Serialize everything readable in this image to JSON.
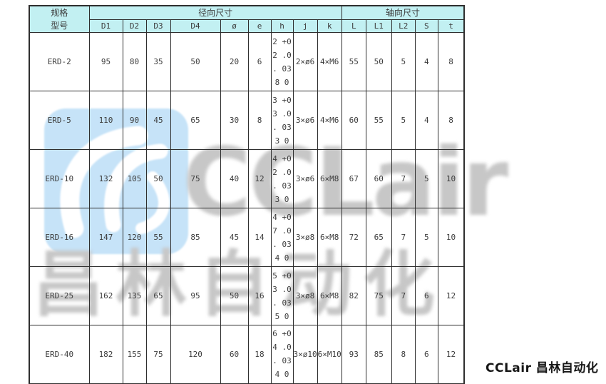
{
  "colors": {
    "header_bg": "#c2f0f2",
    "grid_line": "#2e2e2e",
    "logo_blue": "#c6e3f8",
    "watermark_gray": "#c7c7c7",
    "cell_text": "#3c3c3c"
  },
  "watermark": {
    "brand_en": "CCLair",
    "brand_cn": "昌林自动化",
    "logo_icon": "swirl-leaf-icon"
  },
  "caption": {
    "text": "CCLair 昌林自动化"
  },
  "table": {
    "corner_header": "规格\n型号",
    "group_headers": [
      "径向尺寸",
      "轴向尺寸"
    ],
    "column_headers": [
      "D1",
      "D2",
      "D3",
      "D4",
      "ø",
      "e",
      "h",
      "j",
      "k",
      "L",
      "L1",
      "L2",
      "S",
      "t"
    ],
    "rows": [
      {
        "model": "ERD-2",
        "cells": [
          "95",
          "80",
          "35",
          "50",
          "20",
          "6",
          "2 +0\n2 .0\n. 03\n8 0",
          "2×ø6",
          "4×M6",
          "55",
          "50",
          "5",
          "4",
          "8"
        ]
      },
      {
        "model": "ERD-5",
        "cells": [
          "110",
          "90",
          "45",
          "65",
          "30",
          "8",
          "3 +0\n3 .0\n. 03\n3 0",
          "3×ø6",
          "4×M6",
          "60",
          "55",
          "5",
          "4",
          "8"
        ]
      },
      {
        "model": "ERD-10",
        "cells": [
          "132",
          "105",
          "50",
          "75",
          "40",
          "12",
          "4 +0\n2 .0\n. 03\n3 0",
          "3×ø6",
          "6×M8",
          "67",
          "60",
          "7",
          "5",
          "10"
        ]
      },
      {
        "model": "ERD-16",
        "cells": [
          "147",
          "120",
          "55",
          "85",
          "45",
          "14",
          "4 +0\n7 .0\n. 03\n4 0",
          "3×ø8",
          "6×M8",
          "72",
          "65",
          "7",
          "5",
          "10"
        ]
      },
      {
        "model": "ERD-25",
        "cells": [
          "162",
          "135",
          "65",
          "95",
          "50",
          "16",
          "5 +0\n3 .0\n. 03\n5 0",
          "3×ø8",
          "6×M8",
          "82",
          "75",
          "7",
          "6",
          "12"
        ]
      },
      {
        "model": "ERD-40",
        "cells": [
          "182",
          "155",
          "75",
          "120",
          "60",
          "18",
          "6 +0\n4 .0\n. 03\n4 0",
          "3×ø10",
          "6×M10",
          "93",
          "85",
          "8",
          "6",
          "12"
        ]
      }
    ]
  }
}
